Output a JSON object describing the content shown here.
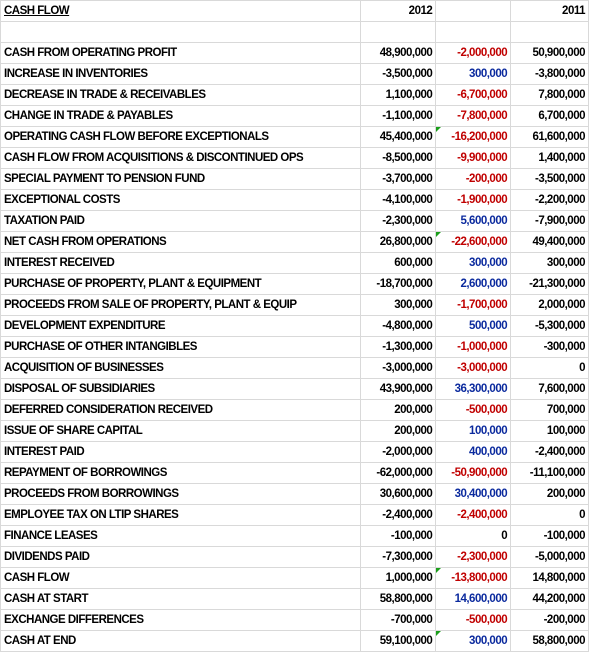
{
  "sheet": {
    "title": "CASH FLOW",
    "year_current": "2012",
    "year_prior": "2011",
    "rows": [
      {
        "label": "CASH FROM OPERATING PROFIT",
        "cur": "48,900,000",
        "var": "-2,000,000",
        "prior": "50,900,000",
        "sign": "neg",
        "flag": false
      },
      {
        "label": "INCREASE IN INVENTORIES",
        "cur": "-3,500,000",
        "var": "300,000",
        "prior": "-3,800,000",
        "sign": "pos",
        "flag": false
      },
      {
        "label": "DECREASE IN TRADE & RECEIVABLES",
        "cur": "1,100,000",
        "var": "-6,700,000",
        "prior": "7,800,000",
        "sign": "neg",
        "flag": false
      },
      {
        "label": "CHANGE IN TRADE & PAYABLES",
        "cur": "-1,100,000",
        "var": "-7,800,000",
        "prior": "6,700,000",
        "sign": "neg",
        "flag": false
      },
      {
        "label": "OPERATING CASH FLOW BEFORE EXCEPTIONALS",
        "cur": "45,400,000",
        "var": "-16,200,000",
        "prior": "61,600,000",
        "sign": "neg",
        "flag": true
      },
      {
        "label": "CASH FLOW FROM ACQUISITIONS & DISCONTINUED OPS",
        "cur": "-8,500,000",
        "var": "-9,900,000",
        "prior": "1,400,000",
        "sign": "neg",
        "flag": false
      },
      {
        "label": "SPECIAL PAYMENT TO PENSION FUND",
        "cur": "-3,700,000",
        "var": "-200,000",
        "prior": "-3,500,000",
        "sign": "neg",
        "flag": false
      },
      {
        "label": "EXCEPTIONAL COSTS",
        "cur": "-4,100,000",
        "var": "-1,900,000",
        "prior": "-2,200,000",
        "sign": "neg",
        "flag": false
      },
      {
        "label": "TAXATION PAID",
        "cur": "-2,300,000",
        "var": "5,600,000",
        "prior": "-7,900,000",
        "sign": "pos",
        "flag": false
      },
      {
        "label": "NET CASH FROM OPERATIONS",
        "cur": "26,800,000",
        "var": "-22,600,000",
        "prior": "49,400,000",
        "sign": "neg",
        "flag": true
      },
      {
        "label": "INTEREST RECEIVED",
        "cur": "600,000",
        "var": "300,000",
        "prior": "300,000",
        "sign": "pos",
        "flag": false
      },
      {
        "label": "PURCHASE OF PROPERTY, PLANT & EQUIPMENT",
        "cur": "-18,700,000",
        "var": "2,600,000",
        "prior": "-21,300,000",
        "sign": "pos",
        "flag": false
      },
      {
        "label": "PROCEEDS FROM SALE OF PROPERTY, PLANT & EQUIP",
        "cur": "300,000",
        "var": "-1,700,000",
        "prior": "2,000,000",
        "sign": "neg",
        "flag": false
      },
      {
        "label": "DEVELOPMENT EXPENDITURE",
        "cur": "-4,800,000",
        "var": "500,000",
        "prior": "-5,300,000",
        "sign": "pos",
        "flag": false
      },
      {
        "label": "PURCHASE OF OTHER INTANGIBLES",
        "cur": "-1,300,000",
        "var": "-1,000,000",
        "prior": "-300,000",
        "sign": "neg",
        "flag": false
      },
      {
        "label": "ACQUISITION OF BUSINESSES",
        "cur": "-3,000,000",
        "var": "-3,000,000",
        "prior": "0",
        "sign": "neg",
        "flag": false
      },
      {
        "label": "DISPOSAL OF SUBSIDIARIES",
        "cur": "43,900,000",
        "var": "36,300,000",
        "prior": "7,600,000",
        "sign": "pos",
        "flag": false
      },
      {
        "label": "DEFERRED CONSIDERATION RECEIVED",
        "cur": "200,000",
        "var": "-500,000",
        "prior": "700,000",
        "sign": "neg",
        "flag": false
      },
      {
        "label": "ISSUE OF SHARE CAPITAL",
        "cur": "200,000",
        "var": "100,000",
        "prior": "100,000",
        "sign": "pos",
        "flag": false
      },
      {
        "label": "INTEREST PAID",
        "cur": "-2,000,000",
        "var": "400,000",
        "prior": "-2,400,000",
        "sign": "pos",
        "flag": false
      },
      {
        "label": "REPAYMENT OF BORROWINGS",
        "cur": "-62,000,000",
        "var": "-50,900,000",
        "prior": "-11,100,000",
        "sign": "neg",
        "flag": false
      },
      {
        "label": "PROCEEDS FROM BORROWINGS",
        "cur": "30,600,000",
        "var": "30,400,000",
        "prior": "200,000",
        "sign": "pos",
        "flag": false
      },
      {
        "label": "EMPLOYEE TAX ON LTIP SHARES",
        "cur": "-2,400,000",
        "var": "-2,400,000",
        "prior": "0",
        "sign": "neg",
        "flag": false
      },
      {
        "label": "FINANCE LEASES",
        "cur": "-100,000",
        "var": "0",
        "prior": "-100,000",
        "sign": "zero",
        "flag": false
      },
      {
        "label": "DIVIDENDS PAID",
        "cur": "-7,300,000",
        "var": "-2,300,000",
        "prior": "-5,000,000",
        "sign": "neg",
        "flag": false
      },
      {
        "label": "CASH FLOW",
        "cur": "1,000,000",
        "var": "-13,800,000",
        "prior": "14,800,000",
        "sign": "neg",
        "flag": true
      },
      {
        "label": "CASH AT START",
        "cur": "58,800,000",
        "var": "14,600,000",
        "prior": "44,200,000",
        "sign": "pos",
        "flag": false
      },
      {
        "label": "EXCHANGE DIFFERENCES",
        "cur": "-700,000",
        "var": "-500,000",
        "prior": "-200,000",
        "sign": "neg",
        "flag": false
      },
      {
        "label": "CASH AT END",
        "cur": "59,100,000",
        "var": "300,000",
        "prior": "58,800,000",
        "sign": "pos",
        "flag": true
      }
    ]
  },
  "colors": {
    "negative": "#c00000",
    "positive": "#0b2a9e",
    "gridline": "#d9d9d9",
    "comment_flag": "#1a9e1a"
  }
}
